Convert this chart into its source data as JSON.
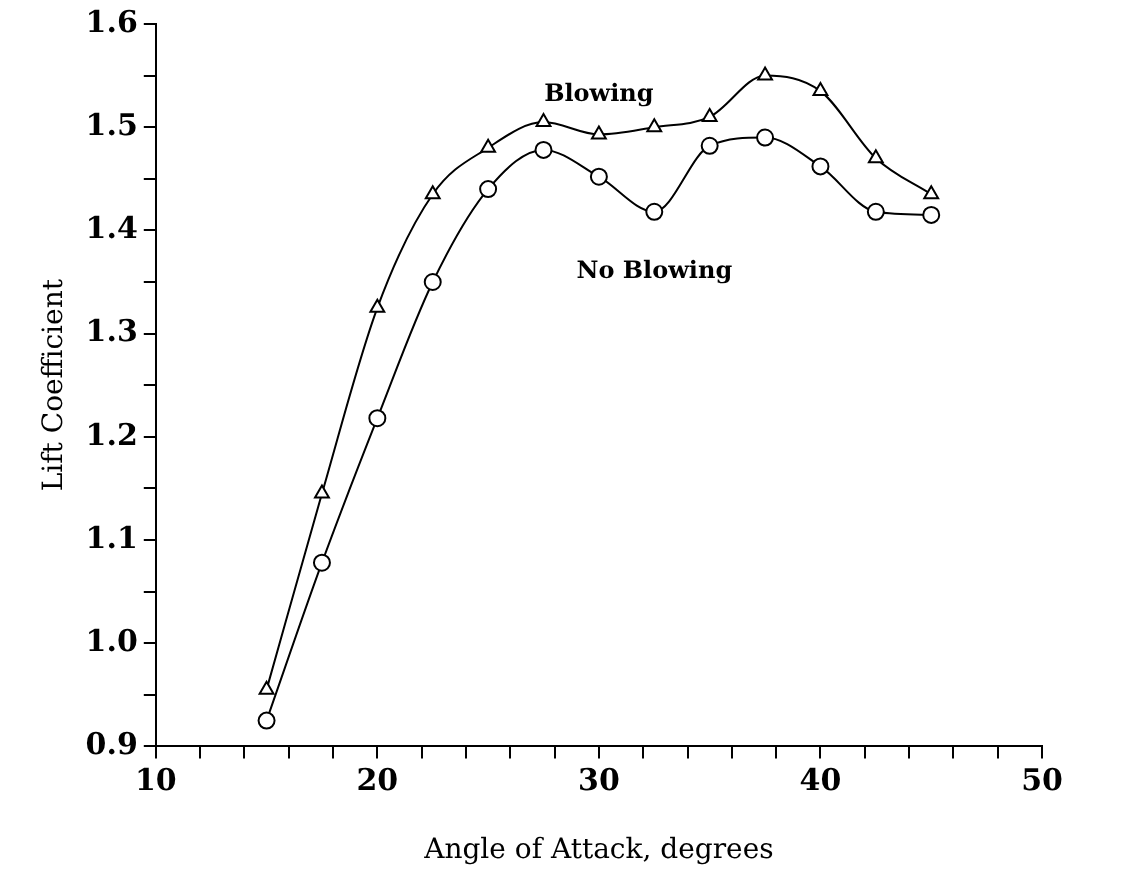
{
  "chart_data": {
    "type": "line",
    "xlabel": "Angle of Attack, degrees",
    "ylabel": "Lift Coefficient",
    "x": [
      15,
      17.5,
      20,
      22.5,
      25,
      27.5,
      30,
      32.5,
      35,
      37.5,
      40,
      42.5,
      45
    ],
    "series": [
      {
        "name": "Blowing",
        "color": "#000000",
        "marker": "triangle",
        "values": [
          0.955,
          1.145,
          1.325,
          1.435,
          1.48,
          1.505,
          1.493,
          1.5,
          1.51,
          1.55,
          1.535,
          1.47,
          1.435
        ]
      },
      {
        "name": "No Blowing",
        "color": "#000000",
        "marker": "circle",
        "values": [
          0.925,
          1.078,
          1.218,
          1.35,
          1.44,
          1.478,
          1.452,
          1.418,
          1.482,
          1.49,
          1.462,
          1.418,
          1.415
        ]
      }
    ],
    "xlim": [
      10,
      50
    ],
    "xticks": [
      10,
      {
        "value": 12,
        "label": null
      },
      {
        "value": 14,
        "label": null
      },
      {
        "value": 16,
        "label": null
      },
      {
        "value": 18,
        "label": null
      },
      20,
      {
        "value": 22,
        "label": null
      },
      {
        "value": 24,
        "label": null
      },
      {
        "value": 26,
        "label": null
      },
      {
        "value": 28,
        "label": null
      },
      30,
      {
        "value": 32,
        "label": null
      },
      {
        "value": 34,
        "label": null
      },
      {
        "value": 36,
        "label": null
      },
      {
        "value": 38,
        "label": null
      },
      40,
      {
        "value": 42,
        "label": null
      },
      {
        "value": 44,
        "label": null
      },
      {
        "value": 46,
        "label": null
      },
      {
        "value": 48,
        "label": null
      },
      50
    ],
    "ylim": [
      0.9,
      1.6
    ],
    "yticks": [
      {
        "value": 0.9,
        "label": "0.9"
      },
      {
        "value": 0.95,
        "label": null
      },
      {
        "value": 1.0,
        "label": "1.0"
      },
      {
        "value": 1.05,
        "label": null
      },
      {
        "value": 1.1,
        "label": "1.1"
      },
      {
        "value": 1.15,
        "label": null
      },
      {
        "value": 1.2,
        "label": "1.2"
      },
      {
        "value": 1.25,
        "label": null
      },
      {
        "value": 1.3,
        "label": "1.3"
      },
      {
        "value": 1.35,
        "label": null
      },
      {
        "value": 1.4,
        "label": "1.4"
      },
      {
        "value": 1.45,
        "label": null
      },
      {
        "value": 1.5,
        "label": "1.5"
      },
      {
        "value": 1.55,
        "label": null
      },
      {
        "value": 1.6,
        "label": "1.6"
      }
    ],
    "grid": false,
    "legend": false,
    "line_style": "solid"
  }
}
